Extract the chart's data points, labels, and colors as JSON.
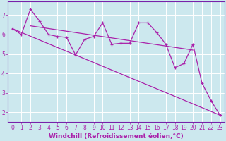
{
  "background_color": "#cce8ee",
  "plot_bg_color": "#cce8ee",
  "grid_color": "#ffffff",
  "line_color": "#aa22aa",
  "axis_bar_color": "#7722aa",
  "xlabel": "Windchill (Refroidissement éolien,°C)",
  "xlabel_fontsize": 6.5,
  "tick_fontsize": 5.5,
  "yticks": [
    2,
    3,
    4,
    5,
    6,
    7
  ],
  "xticks": [
    0,
    1,
    2,
    3,
    4,
    5,
    6,
    7,
    8,
    9,
    10,
    11,
    12,
    13,
    14,
    15,
    16,
    17,
    18,
    19,
    20,
    21,
    22,
    23
  ],
  "xlim": [
    -0.5,
    23.5
  ],
  "ylim": [
    1.5,
    7.7
  ],
  "series1_x": [
    0,
    1,
    2,
    3,
    4,
    5,
    6,
    7,
    8,
    9,
    10,
    11,
    12,
    13,
    14,
    15,
    16,
    17,
    18,
    19,
    20,
    21,
    22,
    23
  ],
  "series1_y": [
    6.3,
    6.0,
    7.3,
    6.7,
    6.0,
    5.9,
    5.85,
    4.95,
    5.75,
    5.9,
    6.6,
    5.5,
    5.55,
    5.55,
    6.6,
    6.6,
    6.1,
    5.5,
    4.3,
    4.5,
    5.5,
    3.5,
    2.6,
    1.85
  ],
  "series2_x": [
    0,
    23
  ],
  "series2_y": [
    6.3,
    1.85
  ],
  "series3_x": [
    2,
    3,
    4,
    5,
    6,
    7,
    8,
    9,
    10,
    11,
    12,
    13,
    14,
    15,
    16,
    17,
    18,
    19,
    20
  ],
  "series3_y": [
    7.3,
    6.7,
    6.0,
    5.9,
    5.85,
    4.95,
    5.75,
    5.9,
    6.6,
    5.5,
    5.55,
    5.55,
    6.6,
    6.6,
    6.1,
    5.5,
    4.3,
    4.5,
    5.5
  ]
}
